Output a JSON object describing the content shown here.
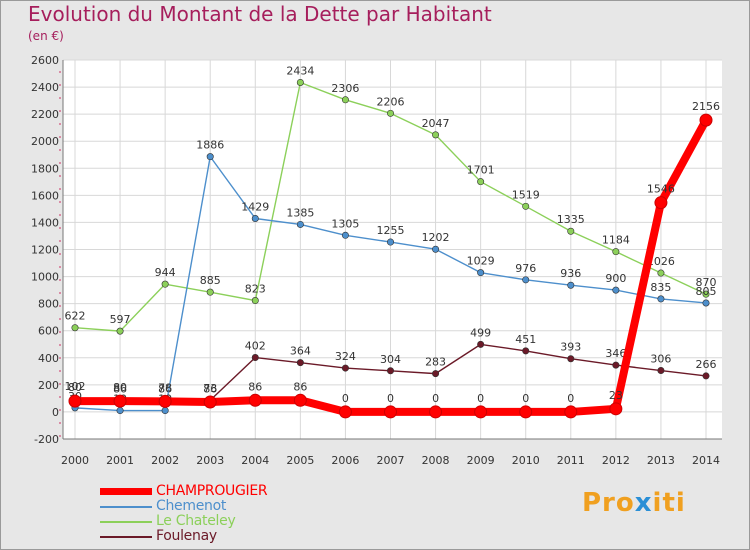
{
  "header": {
    "title": "Evolution du Montant de la Dette par Habitant",
    "unit": "(en €)"
  },
  "brand": {
    "text_a": "Pro",
    "text_b": "x",
    "text_c": "iti"
  },
  "chart_data": {
    "type": "line",
    "title": "Evolution du Montant de la Dette par Habitant",
    "subtitle": "(en €)",
    "xlabel": "",
    "ylabel": "",
    "ylim": [
      -200,
      2600
    ],
    "yticks": [
      -200,
      0,
      200,
      400,
      600,
      800,
      1000,
      1200,
      1400,
      1600,
      1800,
      2000,
      2200,
      2400,
      2600
    ],
    "grid": true,
    "legend_position": "bottom-left",
    "x": [
      "2000",
      "2001",
      "2002",
      "2003",
      "2004",
      "2005",
      "2006",
      "2007",
      "2008",
      "2009",
      "2010",
      "2011",
      "2012",
      "2013",
      "2014"
    ],
    "series": [
      {
        "name": "Foulenay",
        "color": "#6b1a28",
        "values": [
          102,
          86,
          86,
          86,
          402,
          364,
          324,
          304,
          283,
          499,
          451,
          393,
          346,
          306,
          266
        ],
        "labels": [
          "102",
          "86",
          "86",
          "86",
          "402",
          "364",
          "324",
          "304",
          "283",
          "499",
          "451",
          "393",
          "346",
          "306",
          "266"
        ]
      },
      {
        "name": "Le Chateley",
        "color": "#8cd05a",
        "values": [
          622,
          597,
          944,
          885,
          823,
          2434,
          2306,
          2206,
          2047,
          1701,
          1519,
          1335,
          1184,
          1026,
          870
        ],
        "labels": [
          "622",
          "597",
          "944",
          "885",
          "823",
          "2434",
          "2306",
          "2206",
          "2047",
          "1701",
          "1519",
          "1335",
          "1184",
          "1026",
          "870"
        ]
      },
      {
        "name": "Chemenot",
        "color": "#4d8fcc",
        "values": [
          30,
          10,
          10,
          1886,
          1429,
          1385,
          1305,
          1255,
          1202,
          1029,
          976,
          936,
          900,
          835,
          805
        ],
        "labels": [
          "30",
          "10",
          "10",
          "1886",
          "1429",
          "1385",
          "1305",
          "1255",
          "1202",
          "1029",
          "976",
          "936",
          "900",
          "835",
          "805"
        ]
      },
      {
        "name": "CHAMPROUGIER",
        "color": "#ff0000",
        "values": [
          80,
          80,
          78,
          73,
          86,
          86,
          0,
          0,
          0,
          0,
          0,
          0,
          23,
          1546,
          2156
        ],
        "labels": [
          "80",
          "80",
          "78",
          "73",
          "86",
          "86",
          "0",
          "0",
          "0",
          "0",
          "0",
          "0",
          "23",
          "1546",
          "2156"
        ]
      }
    ],
    "legend": [
      {
        "name": "CHAMPROUGIER",
        "color": "#ff0000"
      },
      {
        "name": "Chemenot",
        "color": "#4d8fcc"
      },
      {
        "name": "Le Chateley",
        "color": "#8cd05a"
      },
      {
        "name": "Foulenay",
        "color": "#6b1a28"
      }
    ]
  }
}
